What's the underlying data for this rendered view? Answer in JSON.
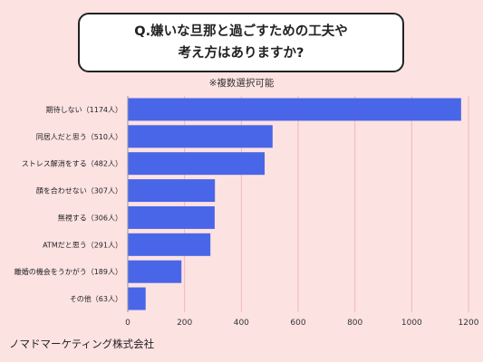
{
  "title": {
    "line1": "Q.嫌いな旦那と過ごすための工夫や",
    "line2": "考え方はありますか?"
  },
  "subtitle": "※複数選択可能",
  "footer": "ノマドマーケティング株式会社",
  "colors": {
    "bar": "#4a66e8",
    "background": "#fde2e2",
    "grid": "#f4b8b8"
  },
  "chart_data": {
    "type": "bar",
    "orientation": "horizontal",
    "categories": [
      "期待しない（1174人）",
      "同居人だと思う（510人）",
      "ストレス解消をする（482人）",
      "顔を合わせない（307人）",
      "無視する（306人）",
      "ATMだと思う（291人）",
      "離婚の機会をうかがう（189人）",
      "その他（63人）"
    ],
    "values": [
      1174,
      510,
      482,
      307,
      306,
      291,
      189,
      63
    ],
    "xlim": [
      0,
      1200
    ],
    "xticks": [
      0,
      200,
      400,
      600,
      800,
      1000,
      1200
    ],
    "grid": true
  }
}
